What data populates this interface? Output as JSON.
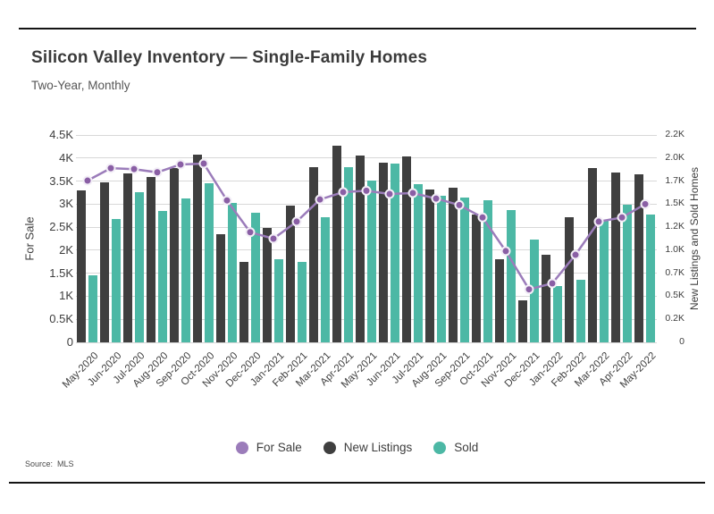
{
  "chart_data": {
    "type": "bar+line",
    "title": "Silicon Valley Inventory — Single-Family Homes",
    "subtitle": "Two-Year, Monthly",
    "categories": [
      "May-2020",
      "Jun-2020",
      "Jul-2020",
      "Aug-2020",
      "Sep-2020",
      "Oct-2020",
      "Nov-2020",
      "Dec-2020",
      "Jan-2021",
      "Feb-2021",
      "Mar-2021",
      "Apr-2021",
      "May-2021",
      "Jun-2021",
      "Jul-2021",
      "Aug-2021",
      "Sep-2021",
      "Oct-2021",
      "Nov-2021",
      "Dec-2021",
      "Jan-2022",
      "Feb-2022",
      "Mar-2022",
      "Apr-2022",
      "May-2022"
    ],
    "series": [
      {
        "name": "For Sale",
        "type": "line",
        "axis": "left",
        "color": "#9b7cba",
        "dot_color": "#8a5fa5",
        "values": [
          3510,
          3780,
          3760,
          3690,
          3860,
          3880,
          3080,
          2390,
          2250,
          2620,
          3100,
          3260,
          3290,
          3220,
          3240,
          3120,
          2980,
          2710,
          1980,
          1150,
          1280,
          1900,
          2620,
          2710,
          3000
        ]
      },
      {
        "name": "New Listings",
        "type": "bar",
        "axis": "right",
        "color": "#3f3f3f",
        "values": [
          1650,
          1740,
          1830,
          1790,
          1890,
          2040,
          1170,
          870,
          1240,
          1480,
          1900,
          2130,
          2030,
          1950,
          2020,
          1660,
          1680,
          1390,
          900,
          460,
          950,
          1360,
          1890,
          1840,
          1820
        ]
      },
      {
        "name": "Sold",
        "type": "bar",
        "axis": "right",
        "color": "#4cb8a5",
        "values": [
          730,
          1340,
          1630,
          1430,
          1560,
          1730,
          1510,
          1410,
          900,
          870,
          1360,
          1900,
          1760,
          1940,
          1720,
          1590,
          1570,
          1540,
          1440,
          1120,
          610,
          680,
          1320,
          1490,
          1390
        ]
      }
    ],
    "axes": {
      "left": {
        "label": "For Sale",
        "range": [
          0,
          4500
        ],
        "ticks": [
          "0",
          "0.5K",
          "1K",
          "1.5K",
          "2K",
          "2.5K",
          "3K",
          "3.5K",
          "4K",
          "4.5K"
        ]
      },
      "right": {
        "label": "New Listings and Sold Homes",
        "range": [
          0,
          2250
        ],
        "ticks": [
          "0",
          "0.2K",
          "0.5K",
          "0.7K",
          "1.0K",
          "1.2K",
          "1.5K",
          "1.7K",
          "2.0K",
          "2.2K"
        ]
      }
    },
    "legend": {
      "position": "bottom",
      "items": [
        "For Sale",
        "New Listings",
        "Sold"
      ]
    },
    "grid": true
  },
  "source": {
    "label": "Source:",
    "value": "MLS"
  },
  "colors": {
    "grid": "#d8d8d8",
    "rule": "#141414",
    "text": "#3d3d3d"
  }
}
